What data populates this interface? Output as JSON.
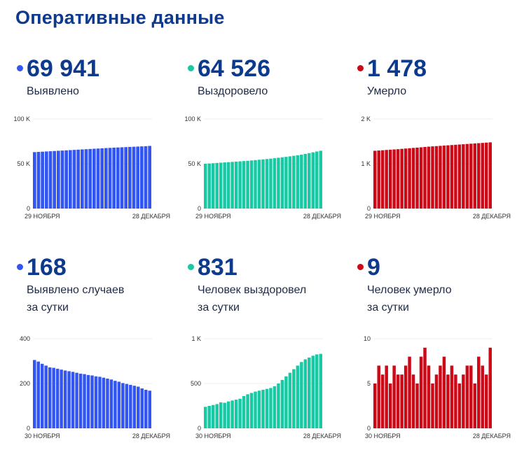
{
  "page_title": "Оперативные данные",
  "colors": {
    "title": "#0d3a8c",
    "blue": "#3456f0",
    "teal": "#18c9a4",
    "red": "#cc0a17"
  },
  "panels": [
    {
      "id": "detected",
      "value": "69 941",
      "caption": "Выявлено",
      "color": "#3456f0"
    },
    {
      "id": "recovered",
      "value": "64 526",
      "caption": "Выздоровело",
      "color": "#18c9a4"
    },
    {
      "id": "died",
      "value": "1 478",
      "caption": "Умерло",
      "color": "#cc0a17"
    },
    {
      "id": "detected_daily",
      "value": "168",
      "caption": "Выявлено случаев\nза сутки",
      "color": "#3456f0"
    },
    {
      "id": "recovered_daily",
      "value": "831",
      "caption": "Человек выздоровел\nза сутки",
      "color": "#18c9a4"
    },
    {
      "id": "died_daily",
      "value": "9",
      "caption": "Человек умерло\nза сутки",
      "color": "#cc0a17"
    }
  ],
  "chart_data": [
    {
      "type": "bar",
      "title": "Выявлено",
      "x_start_label": "29 НОЯБРЯ",
      "x_end_label": "28 ДЕКАБРЯ",
      "ylim": [
        0,
        100000
      ],
      "yticks": [
        {
          "value": 0,
          "label": "0"
        },
        {
          "value": 50000,
          "label": "50 K"
        },
        {
          "value": 100000,
          "label": "100 K"
        }
      ],
      "color": "#3456f0",
      "values": [
        63000,
        63250,
        63500,
        63750,
        64000,
        64250,
        64500,
        64750,
        65000,
        65250,
        65500,
        65750,
        66000,
        66250,
        66500,
        66750,
        67000,
        67250,
        67500,
        67750,
        68000,
        68200,
        68400,
        68600,
        68800,
        69000,
        69200,
        69400,
        69600,
        69941
      ]
    },
    {
      "type": "bar",
      "title": "Выздоровело",
      "x_start_label": "29 НОЯБРЯ",
      "x_end_label": "28 ДЕКАБРЯ",
      "ylim": [
        0,
        100000
      ],
      "yticks": [
        {
          "value": 0,
          "label": "0"
        },
        {
          "value": 50000,
          "label": "50 K"
        },
        {
          "value": 100000,
          "label": "100 K"
        }
      ],
      "color": "#18c9a4",
      "values": [
        50000,
        50300,
        50600,
        50900,
        51200,
        51500,
        51800,
        52100,
        52400,
        52700,
        53000,
        53300,
        53700,
        54100,
        54500,
        54900,
        55300,
        55700,
        56200,
        56700,
        57200,
        57700,
        58300,
        58900,
        59500,
        60200,
        61000,
        61900,
        62800,
        63700,
        64526
      ]
    },
    {
      "type": "bar",
      "title": "Умерло",
      "x_start_label": "29 НОЯБРЯ",
      "x_end_label": "28 ДЕКАБРЯ",
      "ylim": [
        0,
        2000
      ],
      "yticks": [
        {
          "value": 0,
          "label": "0"
        },
        {
          "value": 1000,
          "label": "1 K"
        },
        {
          "value": 2000,
          "label": "2 K"
        }
      ],
      "color": "#cc0a17",
      "values": [
        1290,
        1296,
        1302,
        1308,
        1314,
        1320,
        1326,
        1333,
        1340,
        1347,
        1354,
        1361,
        1368,
        1375,
        1382,
        1388,
        1394,
        1400,
        1406,
        1412,
        1418,
        1424,
        1430,
        1436,
        1442,
        1448,
        1454,
        1460,
        1466,
        1472,
        1478
      ]
    },
    {
      "type": "bar",
      "title": "Выявлено случаев за сутки",
      "x_start_label": "30 НОЯБРЯ",
      "x_end_label": "28 ДЕКАБРЯ",
      "ylim": [
        0,
        400
      ],
      "yticks": [
        {
          "value": 0,
          "label": "0"
        },
        {
          "value": 200,
          "label": "200"
        },
        {
          "value": 400,
          "label": "400"
        }
      ],
      "color": "#3456f0",
      "values": [
        305,
        298,
        288,
        280,
        272,
        270,
        266,
        262,
        258,
        255,
        252,
        248,
        244,
        242,
        238,
        236,
        232,
        230,
        226,
        222,
        218,
        212,
        208,
        202,
        198,
        194,
        190,
        186,
        178,
        172,
        168
      ]
    },
    {
      "type": "bar",
      "title": "Человек выздоровел за сутки",
      "x_start_label": "30 НОЯБРЯ",
      "x_end_label": "28 ДЕКАБРЯ",
      "ylim": [
        0,
        1000
      ],
      "yticks": [
        {
          "value": 0,
          "label": "0"
        },
        {
          "value": 500,
          "label": "500"
        },
        {
          "value": 1000,
          "label": "1 K"
        }
      ],
      "color": "#18c9a4",
      "values": [
        240,
        250,
        260,
        270,
        290,
        285,
        300,
        310,
        320,
        330,
        360,
        380,
        395,
        410,
        420,
        430,
        440,
        450,
        470,
        500,
        540,
        580,
        620,
        660,
        700,
        740,
        770,
        790,
        810,
        825,
        831
      ]
    },
    {
      "type": "bar",
      "title": "Человек умерло за сутки",
      "x_start_label": "30 НОЯБРЯ",
      "x_end_label": "28 ДЕКАБРЯ",
      "ylim": [
        0,
        10
      ],
      "yticks": [
        {
          "value": 0,
          "label": "0"
        },
        {
          "value": 5,
          "label": "5"
        },
        {
          "value": 10,
          "label": "10"
        }
      ],
      "color": "#cc0a17",
      "values": [
        5,
        7,
        6,
        7,
        5,
        7,
        6,
        6,
        7,
        8,
        6,
        5,
        8,
        9,
        7,
        5,
        6,
        7,
        8,
        6,
        7,
        6,
        5,
        6,
        7,
        7,
        5,
        8,
        7,
        6,
        9
      ]
    }
  ]
}
